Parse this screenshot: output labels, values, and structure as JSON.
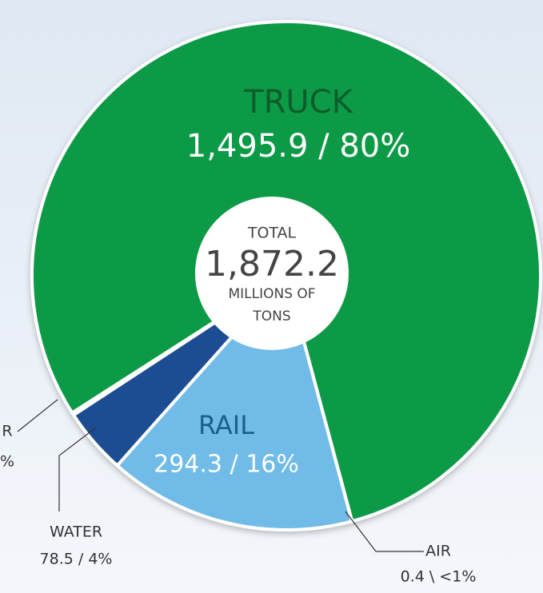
{
  "chart_data": {
    "type": "pie",
    "categories": [
      "AIR",
      "RAIL",
      "WATER",
      "R",
      "TRUCK"
    ],
    "values": [
      0.4,
      294.3,
      78.5,
      3.1,
      1495.9
    ],
    "value_labels": [
      "0.4 \\ <1%",
      "294.3 / 16%",
      "78.5 / 4%",
      "%",
      "1,495.9 / 80%"
    ],
    "colors": [
      "#e8f2f8",
      "#6fbbe8",
      "#1f4e93",
      "#c99a22",
      "#0e9a47"
    ],
    "total": {
      "label": "TOTAL",
      "value": "1,872.2",
      "unit_lines": [
        "MILLIONS OF",
        "TONS"
      ]
    }
  }
}
